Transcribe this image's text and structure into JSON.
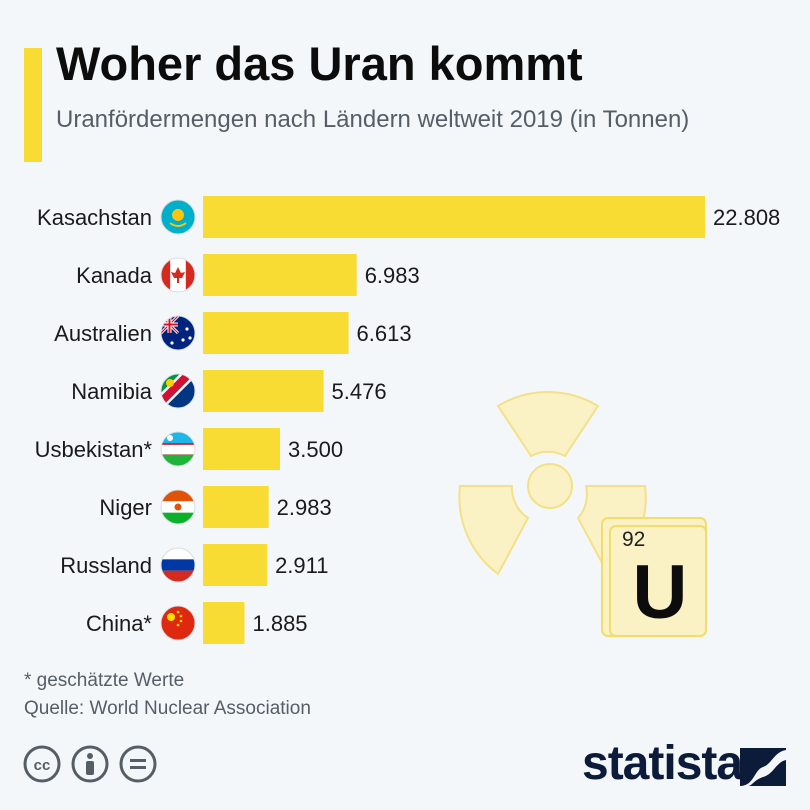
{
  "header": {
    "title": "Woher das Uran kommt",
    "subtitle": "Uranfördermengen nach Ländern weltweit 2019 (in Tonnen)"
  },
  "chart_data": {
    "type": "bar",
    "orientation": "horizontal",
    "categories": [
      "Kasachstan",
      "Kanada",
      "Australien",
      "Namibia",
      "Usbekistan*",
      "Niger",
      "Russland",
      "China*"
    ],
    "values": [
      22808,
      6983,
      6613,
      5476,
      3500,
      2983,
      2911,
      1885
    ],
    "value_labels": [
      "22.808",
      "6.983",
      "6.613",
      "5.476",
      "3.500",
      "2.983",
      "2.911",
      "1.885"
    ],
    "flags": [
      "kazakhstan-flag-icon",
      "canada-flag-icon",
      "australia-flag-icon",
      "namibia-flag-icon",
      "uzbekistan-flag-icon",
      "niger-flag-icon",
      "russia-flag-icon",
      "china-flag-icon"
    ],
    "xlim": [
      0,
      22808
    ],
    "grid": false,
    "colors": {
      "bar": "#f9dc33"
    }
  },
  "element_tile": {
    "number": "92",
    "symbol": "U"
  },
  "footer": {
    "footnote": "* geschätzte Werte",
    "source": "Quelle: World Nuclear Association",
    "brand": "statista",
    "license_icons": [
      "creative-commons-icon",
      "attribution-icon",
      "no-derivatives-icon"
    ]
  },
  "colors": {
    "accent": "#f9dc33",
    "title": "#0c0c0c",
    "text": "#555e66",
    "brand": "#0c1b3a",
    "background": "#f4f7fa"
  }
}
